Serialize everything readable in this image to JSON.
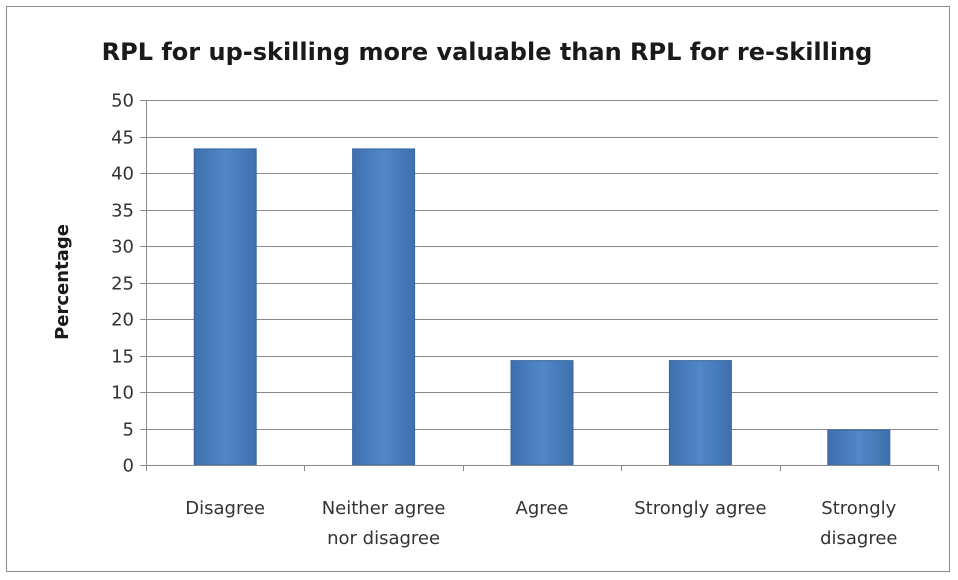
{
  "chart_data": {
    "type": "bar",
    "title": "RPL for up-skilling more valuable than RPL for re-skilling",
    "xlabel": "",
    "ylabel": "Percentage",
    "ylim": [
      0,
      50
    ],
    "yticks": [
      0,
      5,
      10,
      15,
      20,
      25,
      30,
      35,
      40,
      45,
      50
    ],
    "grid": true,
    "legend": "none",
    "bar_color": "#4a7ebb",
    "categories": [
      [
        "Disagree"
      ],
      [
        "Neither agree",
        "nor disagree"
      ],
      [
        "Agree"
      ],
      [
        "Strongly agree"
      ],
      [
        "Strongly",
        "disagree"
      ]
    ],
    "values": [
      43.3,
      43.3,
      14.3,
      14.3,
      4.8
    ]
  }
}
